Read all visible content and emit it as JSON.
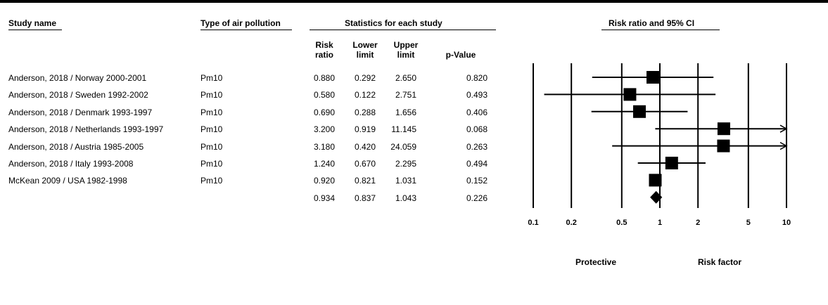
{
  "headers": {
    "study": "Study name",
    "type": "Type of air pollution",
    "stats": "Statistics for each study",
    "plot": "Risk ratio and 95% CI"
  },
  "columns": {
    "rr": [
      "Risk",
      "ratio"
    ],
    "lower": [
      "Lower",
      "limit"
    ],
    "upper": [
      "Upper",
      "limit"
    ],
    "p": [
      "p-Value"
    ]
  },
  "rows": [
    {
      "study": "Anderson, 2018 /  Norway 2000-2001",
      "type": "Pm10",
      "rr": "0.880",
      "lower": "0.292",
      "upper": "2.650",
      "p": "0.820"
    },
    {
      "study": "Anderson, 2018 / Sweden 1992-2002",
      "type": "Pm10",
      "rr": "0.580",
      "lower": "0.122",
      "upper": "2.751",
      "p": "0.493"
    },
    {
      "study": "Anderson, 2018 / Denmark 1993-1997",
      "type": "Pm10",
      "rr": "0.690",
      "lower": "0.288",
      "upper": "1.656",
      "p": "0.406"
    },
    {
      "study": "Anderson, 2018 / Netherlands 1993-1997",
      "type": "Pm10",
      "rr": "3.200",
      "lower": "0.919",
      "upper": "11.145",
      "p": "0.068"
    },
    {
      "study": "Anderson, 2018 / Austria 1985-2005",
      "type": "Pm10",
      "rr": "3.180",
      "lower": "0.420",
      "upper": "24.059",
      "p": "0.263"
    },
    {
      "study": "Anderson, 2018 / Italy 1993-2008",
      "type": "Pm10",
      "rr": "1.240",
      "lower": "0.670",
      "upper": "2.295",
      "p": "0.494"
    },
    {
      "study": "McKean 2009 / USA 1982-1998",
      "type": "Pm10",
      "rr": "0.920",
      "lower": "0.821",
      "upper": "1.031",
      "p": "0.152"
    }
  ],
  "summary": {
    "rr": "0.934",
    "lower": "0.837",
    "upper": "1.043",
    "p": "0.226"
  },
  "labels": {
    "protective": "Protective",
    "risk": "Risk factor"
  },
  "chart_data": {
    "type": "forest",
    "scale": "log",
    "x_ticks": [
      0.1,
      0.2,
      0.5,
      1,
      2,
      5,
      10
    ],
    "x_tick_labels": [
      "0.1",
      "0.2",
      "0.5",
      "1",
      "2",
      "5",
      "10"
    ],
    "xlim": [
      0.1,
      10
    ],
    "studies": [
      {
        "rr": 0.88,
        "lower": 0.292,
        "upper": 2.65
      },
      {
        "rr": 0.58,
        "lower": 0.122,
        "upper": 2.751
      },
      {
        "rr": 0.69,
        "lower": 0.288,
        "upper": 1.656
      },
      {
        "rr": 3.2,
        "lower": 0.919,
        "upper": 11.145
      },
      {
        "rr": 3.18,
        "lower": 0.42,
        "upper": 24.059
      },
      {
        "rr": 1.24,
        "lower": 0.67,
        "upper": 2.295
      },
      {
        "rr": 0.92,
        "lower": 0.821,
        "upper": 1.031
      }
    ],
    "pooled": {
      "rr": 0.934,
      "lower": 0.837,
      "upper": 1.043
    }
  }
}
